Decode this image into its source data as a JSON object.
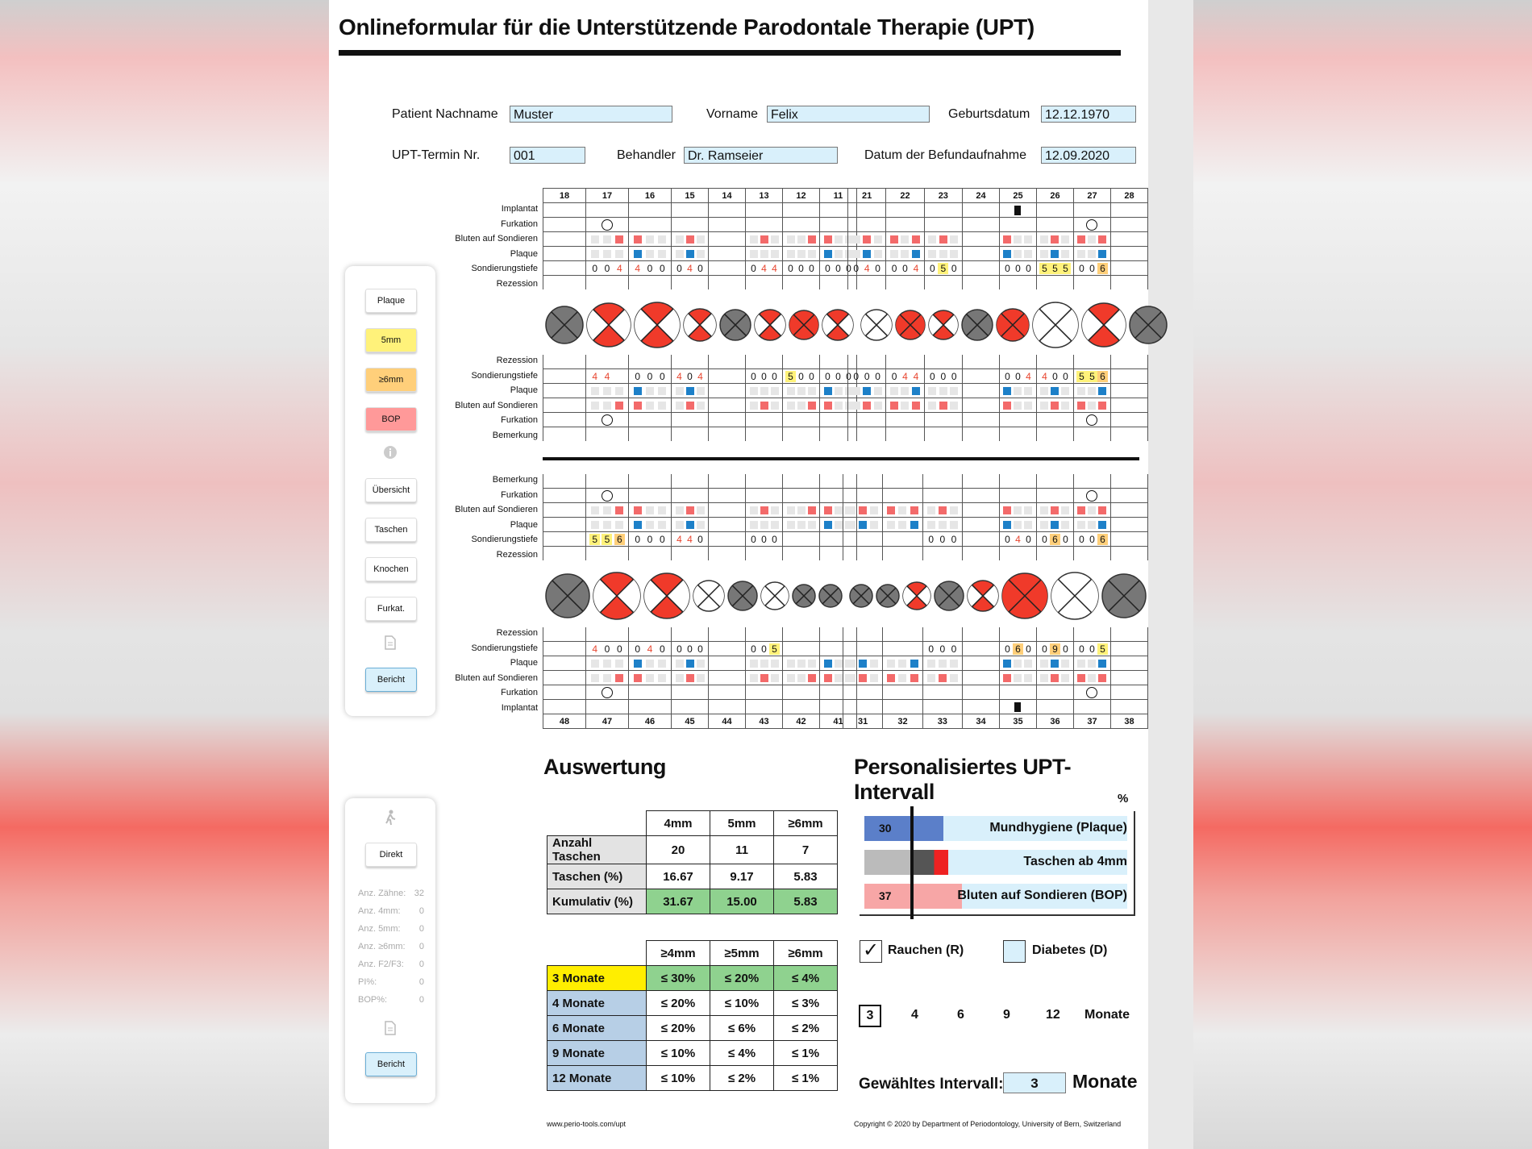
{
  "title": "Onlineformular für die Unterstützende Parodontale Therapie (UPT)",
  "patient": {
    "lastname_label": "Patient Nachname",
    "lastname": "Muster",
    "firstname_label": "Vorname",
    "firstname": "Felix",
    "birth_label": "Geburtsdatum",
    "birth": "12.12.1970",
    "termin_label": "UPT-Termin Nr.",
    "termin": "001",
    "doctor_label": "Behandler",
    "doctor": "Dr. Ramseier",
    "date_label": "Datum der Befundaufnahme",
    "date": "12.09.2020"
  },
  "side_top": {
    "plaque": "Plaque",
    "mm5": "5mm",
    "mm6": "≥6mm",
    "bop": "BOP",
    "info_icon": "info-icon",
    "overview": "Übersicht",
    "pockets": "Taschen",
    "bone": "Knochen",
    "furc": "Furkat.",
    "doc_icon": "document-icon",
    "report": "Bericht"
  },
  "side_bottom": {
    "walk_icon": "walking-icon",
    "direct": "Direkt",
    "stats": [
      {
        "label": "Anz. Zähne:",
        "value": "32"
      },
      {
        "label": "Anz. 4mm:",
        "value": "0"
      },
      {
        "label": "Anz. 5mm:",
        "value": "0"
      },
      {
        "label": "Anz. ≥6mm:",
        "value": "0"
      },
      {
        "label": "Anz. F2/F3:",
        "value": "0"
      },
      {
        "label": "PI%:",
        "value": "0"
      },
      {
        "label": "BOP%:",
        "value": "0"
      }
    ],
    "doc_icon": "document-icon",
    "report": "Bericht"
  },
  "chart": {
    "upper_teeth_right": [
      "18",
      "17",
      "16",
      "15",
      "14",
      "13",
      "12",
      "11"
    ],
    "upper_teeth_left": [
      "21",
      "22",
      "23",
      "24",
      "25",
      "26",
      "27",
      "28"
    ],
    "lower_teeth_right": [
      "48",
      "47",
      "46",
      "45",
      "44",
      "43",
      "42",
      "41"
    ],
    "lower_teeth_left": [
      "31",
      "32",
      "33",
      "34",
      "35",
      "36",
      "37",
      "38"
    ],
    "upper_buccal_rows": [
      "Implantat",
      "Furkation",
      "Bluten auf Sondieren",
      "Plaque",
      "Sondierungstiefe",
      "Rezession"
    ],
    "upper_palatal_rows": [
      "Rezession",
      "Sondierungstiefe",
      "Plaque",
      "Bluten auf Sondieren",
      "Furkation",
      "Bemerkung"
    ],
    "lower_lingual_rows": [
      "Bemerkung",
      "Furkation",
      "Bluten auf Sondieren",
      "Plaque",
      "Sondierungstiefe",
      "Rezession"
    ],
    "lower_buccal_rows": [
      "Rezession",
      "Sondierungstiefe",
      "Plaque",
      "Bluten auf Sondieren",
      "Furkation",
      "Implantat"
    ],
    "ub_depth": [
      [
        "",
        "",
        ""
      ],
      [
        "0",
        "0",
        "4"
      ],
      [
        "4",
        "0",
        "0"
      ],
      [
        "0",
        "4",
        "0"
      ],
      [
        "",
        "",
        ""
      ],
      [
        "0",
        "4",
        "4"
      ],
      [
        "0",
        "0",
        "0"
      ],
      [
        "0",
        "0",
        "0"
      ],
      [
        "0",
        "4",
        "0"
      ],
      [
        "0",
        "0",
        "4"
      ],
      [
        "0",
        "5",
        "0"
      ],
      [
        "",
        "",
        ""
      ],
      [
        "0",
        "0",
        "0"
      ],
      [
        "5",
        "5",
        "5"
      ],
      [
        "0",
        "0",
        "6"
      ],
      [
        "",
        "",
        ""
      ]
    ],
    "up_depth": [
      [
        "",
        "",
        ""
      ],
      [
        "4",
        "4",
        ""
      ],
      [
        "0",
        "0",
        "0"
      ],
      [
        "4",
        "0",
        "4"
      ],
      [
        "",
        "",
        ""
      ],
      [
        "0",
        "0",
        "0"
      ],
      [
        "5",
        "0",
        "0"
      ],
      [
        "0",
        "0",
        "0"
      ],
      [
        "0",
        "0",
        "0"
      ],
      [
        "0",
        "4",
        "4"
      ],
      [
        "0",
        "0",
        "0"
      ],
      [
        "",
        "",
        ""
      ],
      [
        "0",
        "0",
        "4"
      ],
      [
        "4",
        "0",
        "0"
      ],
      [
        "5",
        "5",
        "6"
      ],
      [
        "",
        "",
        ""
      ]
    ],
    "ll_depth": [
      [
        "",
        "",
        ""
      ],
      [
        "5",
        "5",
        "6"
      ],
      [
        "0",
        "0",
        "0"
      ],
      [
        "4",
        "4",
        "0"
      ],
      [
        "",
        "",
        ""
      ],
      [
        "0",
        "0",
        "0"
      ],
      [
        "",
        "",
        ""
      ],
      [
        "",
        "",
        ""
      ],
      [
        "",
        "",
        ""
      ],
      [
        "",
        "",
        ""
      ],
      [
        "0",
        "0",
        "0"
      ],
      [
        "",
        "",
        ""
      ],
      [
        "0",
        "4",
        "0"
      ],
      [
        "0",
        "6",
        "0"
      ],
      [
        "0",
        "0",
        "6"
      ],
      [
        "",
        "",
        ""
      ]
    ],
    "lb_depth": [
      [
        "",
        "",
        ""
      ],
      [
        "4",
        "0",
        "0"
      ],
      [
        "0",
        "4",
        "0"
      ],
      [
        "0",
        "0",
        "0"
      ],
      [
        "",
        "",
        ""
      ],
      [
        "0",
        "0",
        "5"
      ],
      [
        "",
        "",
        ""
      ],
      [
        "",
        "",
        ""
      ],
      [
        "",
        "",
        ""
      ],
      [
        "",
        "",
        ""
      ],
      [
        "0",
        "0",
        "0"
      ],
      [
        "",
        "",
        ""
      ],
      [
        "0",
        "6",
        "0"
      ],
      [
        "0",
        "9",
        "0"
      ],
      [
        "0",
        "0",
        "5"
      ],
      [
        "",
        "",
        ""
      ]
    ]
  },
  "eval": {
    "title": "Auswertung",
    "head": [
      "4mm",
      "5mm",
      "≥6mm"
    ],
    "rows": [
      {
        "label": "Anzahl Taschen",
        "v": [
          "20",
          "11",
          "7"
        ]
      },
      {
        "label": "Taschen (%)",
        "v": [
          "16.67",
          "9.17",
          "5.83"
        ]
      },
      {
        "label": "Kumulativ (%)",
        "v": [
          "31.67",
          "15.00",
          "5.83"
        ]
      }
    ],
    "head2": [
      "≥4mm",
      "≥5mm",
      "≥6mm"
    ],
    "rows2": [
      {
        "label": "3 Monate",
        "v": [
          "≤ 30%",
          "≤ 20%",
          "≤ 4%"
        ]
      },
      {
        "label": "4 Monate",
        "v": [
          "≤ 20%",
          "≤ 10%",
          "≤ 3%"
        ]
      },
      {
        "label": "6 Monate",
        "v": [
          "≤ 20%",
          "≤ 6%",
          "≤ 2%"
        ]
      },
      {
        "label": "9 Monate",
        "v": [
          "≤ 10%",
          "≤ 4%",
          "≤ 1%"
        ]
      },
      {
        "label": "12 Monate",
        "v": [
          "≤ 10%",
          "≤ 2%",
          "≤ 1%"
        ]
      }
    ]
  },
  "interval": {
    "title": "Personalisiertes UPT-Intervall",
    "pct": "%",
    "bars": [
      {
        "label": "Mundhygiene (Plaque)",
        "value": "30",
        "level": 0.3
      },
      {
        "label": "Taschen ab 4mm",
        "value": "",
        "level": 0.32
      },
      {
        "label": "Bluten auf Sondieren (BOP)",
        "value": "37",
        "level": 0.37
      }
    ],
    "smoke": "Rauchen (R)",
    "smoke_check": "✓",
    "diabetes": "Diabetes (D)",
    "months": [
      "3",
      "4",
      "6",
      "9",
      "12"
    ],
    "months_label": "Monate",
    "chosen_label": "Gewähltes Intervall:",
    "chosen": "3",
    "chosen_unit": "Monate"
  },
  "footer": {
    "left": "www.perio-tools.com/upt",
    "right": "Copyright © 2020 by Department of Periodontology, University of Bern, Switzerland"
  },
  "colors": {
    "bop": "#f36a6a",
    "plaque": "#1d80c8",
    "mm5": "#fff27a",
    "mm6": "#ffcf7a",
    "field": "#d9f0fb"
  }
}
